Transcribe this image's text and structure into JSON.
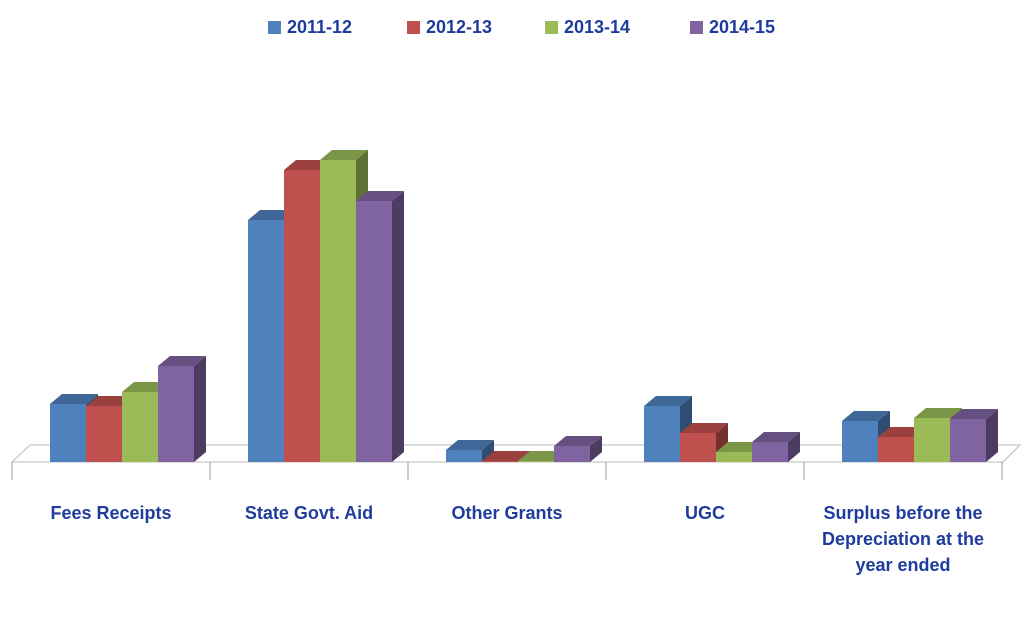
{
  "chart_data": {
    "type": "bar3d",
    "categories": [
      "Fees Receipts",
      "State Govt. Aid",
      "Other Grants",
      "UGC",
      "Surplus before the Depreciation at the year ended"
    ],
    "series": [
      {
        "name": "2011-12",
        "color": "#4f81bd",
        "values": [
          58,
          242,
          12,
          56,
          41
        ]
      },
      {
        "name": "2012-13",
        "color": "#c0504d",
        "values": [
          56,
          292,
          1,
          29,
          25
        ]
      },
      {
        "name": "2013-14",
        "color": "#9bbb59",
        "values": [
          70,
          302,
          1,
          10,
          44
        ]
      },
      {
        "name": "2014-15",
        "color": "#8064a2",
        "values": [
          96,
          261,
          16,
          20,
          43
        ]
      }
    ],
    "ylim": [
      0,
      320
    ],
    "legend": "top"
  }
}
